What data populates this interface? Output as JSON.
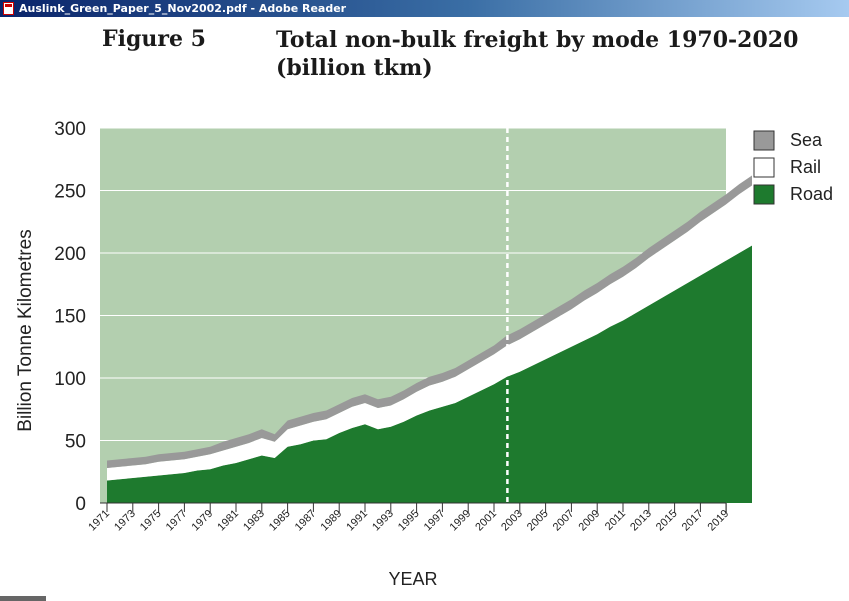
{
  "window": {
    "title": "Auslink_Green_Paper_5_Nov2002.pdf - Adobe Reader"
  },
  "figure": {
    "number": "Figure 5",
    "title": "Total non-bulk freight by mode 1970-2020 (billion tkm)"
  },
  "chart_data": {
    "type": "area",
    "stacked": true,
    "ylabel": "Billion Tonne Kilometres",
    "xlabel": "YEAR",
    "ylim": [
      0,
      300
    ],
    "xlim": [
      1971,
      2021
    ],
    "yticks": [
      0,
      50,
      100,
      150,
      200,
      250,
      300
    ],
    "xticks": [
      "1971",
      "1973",
      "1975",
      "1977",
      "1979",
      "1981",
      "1983",
      "1985",
      "1987",
      "1989",
      "1991",
      "1993",
      "1995",
      "1997",
      "1999",
      "2001",
      "2003",
      "2005",
      "2007",
      "2009",
      "2011",
      "2013",
      "2015",
      "2017",
      "2019"
    ],
    "forecast_start": 2002,
    "grid": true,
    "legend_position": "right",
    "x": [
      1971,
      1972,
      1973,
      1974,
      1975,
      1976,
      1977,
      1978,
      1979,
      1980,
      1981,
      1982,
      1983,
      1984,
      1985,
      1986,
      1987,
      1988,
      1989,
      1990,
      1991,
      1992,
      1993,
      1994,
      1995,
      1996,
      1997,
      1998,
      1999,
      2000,
      2001,
      2002,
      2003,
      2004,
      2005,
      2006,
      2007,
      2008,
      2009,
      2010,
      2011,
      2012,
      2013,
      2014,
      2015,
      2016,
      2017,
      2018,
      2019,
      2020,
      2021
    ],
    "series": [
      {
        "name": "Road",
        "color": "#1e7a2e",
        "values": [
          18,
          19,
          20,
          21,
          22,
          23,
          24,
          26,
          27,
          30,
          32,
          35,
          38,
          36,
          45,
          47,
          50,
          51,
          56,
          60,
          63,
          59,
          61,
          65,
          70,
          74,
          77,
          80,
          85,
          90,
          95,
          101,
          105,
          110,
          115,
          120,
          125,
          130,
          135,
          141,
          146,
          152,
          158,
          164,
          170,
          176,
          182,
          188,
          194,
          200,
          206
        ]
      },
      {
        "name": "Rail",
        "color": "#ffffff",
        "values": [
          10,
          10,
          10,
          10,
          11,
          11,
          11,
          11,
          12,
          12,
          13,
          13,
          14,
          13,
          14,
          15,
          15,
          16,
          16,
          17,
          17,
          17,
          17,
          18,
          19,
          20,
          20,
          21,
          22,
          23,
          24,
          25,
          26,
          27,
          28,
          29,
          30,
          32,
          33,
          34,
          35,
          36,
          38,
          39,
          40,
          41,
          43,
          44,
          45,
          47,
          48
        ]
      },
      {
        "name": "Sea",
        "color": "#999999",
        "values": [
          6,
          6,
          6,
          6,
          6,
          6,
          6,
          6,
          6,
          7,
          7,
          7,
          7,
          6,
          7,
          7,
          7,
          7,
          7,
          7,
          7,
          7,
          7,
          7,
          7,
          7,
          7,
          7,
          7,
          7,
          7,
          8,
          8,
          8,
          8,
          8,
          8,
          8,
          8,
          8,
          8,
          8,
          8,
          8,
          8,
          8,
          8,
          8,
          8,
          8,
          8
        ]
      }
    ],
    "legend_order": [
      "Sea",
      "Rail",
      "Road"
    ],
    "plot_background": "#b3cfaf"
  }
}
